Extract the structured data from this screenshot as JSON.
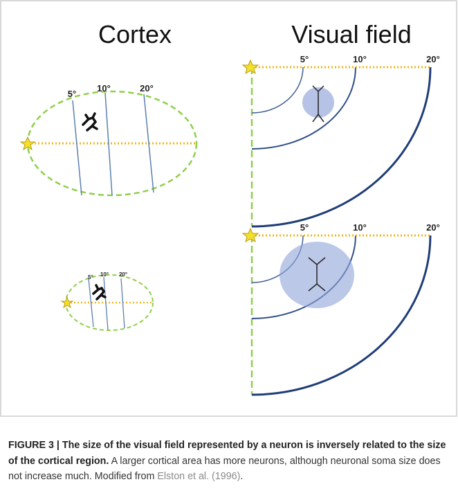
{
  "figure": {
    "cortex_title": "Cortex",
    "visual_field_title": "Visual field",
    "cortex_large_labels": [
      "5°",
      "10°",
      "20°"
    ],
    "cortex_small_labels": [
      "5°",
      "10°",
      "20°"
    ],
    "visual_top_labels": [
      "5°",
      "10°",
      "20°"
    ],
    "visual_bottom_labels": [
      "5°",
      "10°",
      "20°"
    ]
  },
  "caption": {
    "bold": "FIGURE 3 | The size of the visual field represented by a neuron is inversely related to the size of the cortical region.",
    "text": "A larger cortical area has more neurons, although neuronal soma size does not increase much. Modified from",
    "citation": "Elston et al. (1996)",
    "end": "."
  }
}
